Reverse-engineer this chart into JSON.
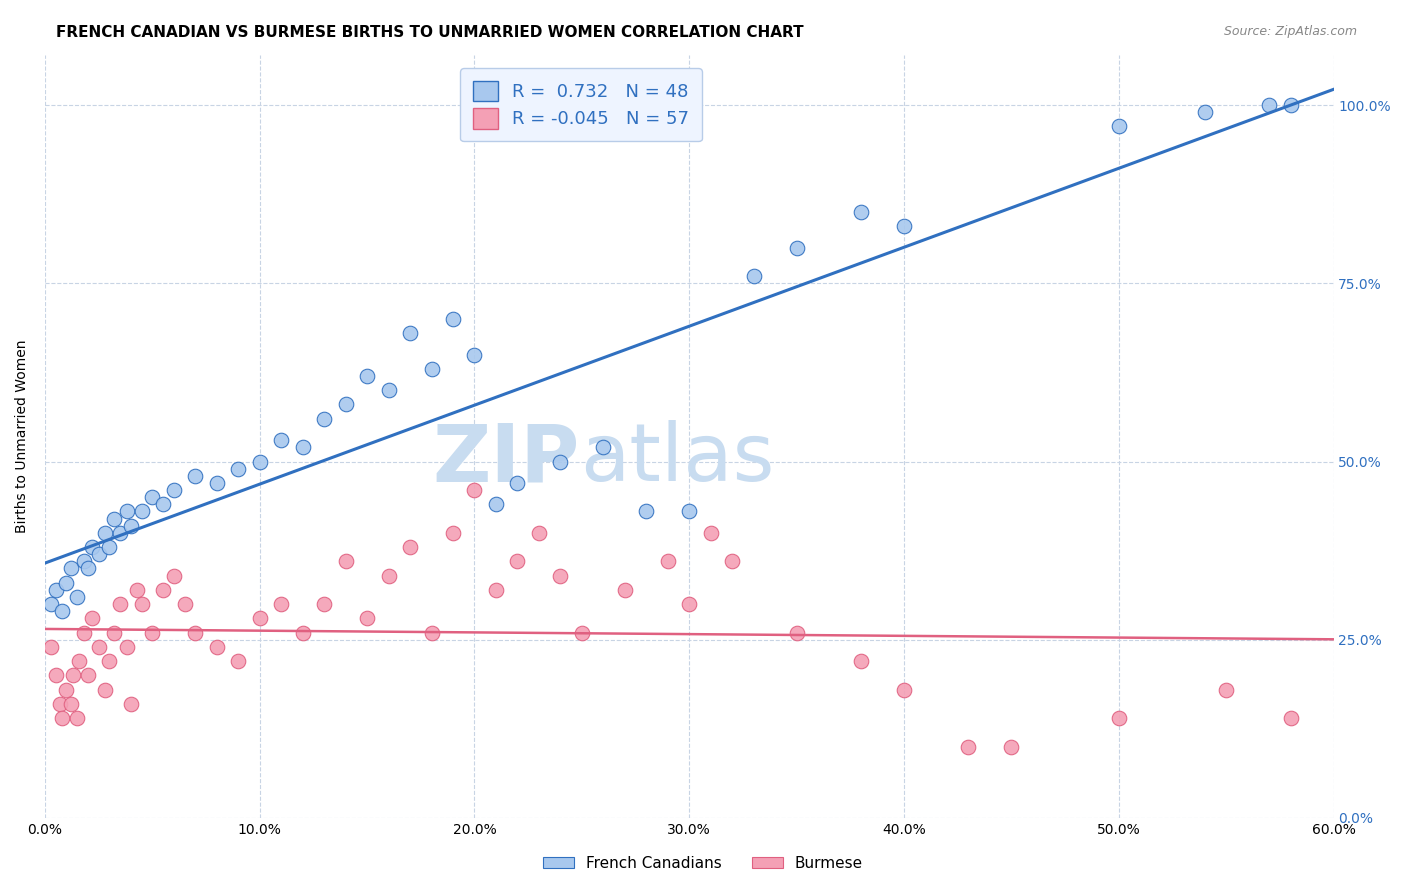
{
  "title": "FRENCH CANADIAN VS BURMESE BIRTHS TO UNMARRIED WOMEN CORRELATION CHART",
  "source": "Source: ZipAtlas.com",
  "ylabel": "Births to Unmarried Women",
  "xlabel_vals": [
    0,
    10,
    20,
    30,
    40,
    50,
    60
  ],
  "ylabel_vals": [
    0,
    25,
    50,
    75,
    100
  ],
  "xlim": [
    0,
    60
  ],
  "ylim": [
    0,
    107
  ],
  "r_french": 0.732,
  "n_french": 48,
  "r_burmese": -0.045,
  "n_burmese": 57,
  "french_color": "#A8C8EE",
  "burmese_color": "#F4A0B5",
  "french_line_color": "#3070C0",
  "burmese_line_color": "#E06080",
  "legend_box_facecolor": "#EEF4FF",
  "legend_border_color": "#B8CCE8",
  "watermark_zip": "ZIP",
  "watermark_atlas": "atlas",
  "watermark_color": "#C8DCF0",
  "grid_color": "#C8D4E4",
  "french_scatter_x": [
    0.3,
    0.5,
    0.8,
    1.0,
    1.2,
    1.5,
    1.8,
    2.0,
    2.2,
    2.5,
    2.8,
    3.0,
    3.2,
    3.5,
    3.8,
    4.0,
    4.5,
    5.0,
    5.5,
    6.0,
    7.0,
    8.0,
    9.0,
    10.0,
    11.0,
    12.0,
    13.0,
    14.0,
    15.0,
    16.0,
    17.0,
    18.0,
    19.0,
    20.0,
    21.0,
    22.0,
    24.0,
    26.0,
    28.0,
    30.0,
    33.0,
    35.0,
    38.0,
    40.0,
    50.0,
    54.0,
    57.0,
    58.0
  ],
  "french_scatter_y": [
    30,
    32,
    29,
    33,
    35,
    31,
    36,
    35,
    38,
    37,
    40,
    38,
    42,
    40,
    43,
    41,
    43,
    45,
    44,
    46,
    48,
    47,
    49,
    50,
    53,
    52,
    56,
    58,
    62,
    60,
    68,
    63,
    70,
    65,
    44,
    47,
    50,
    52,
    43,
    43,
    76,
    80,
    85,
    83,
    97,
    99,
    100,
    100
  ],
  "burmese_scatter_x": [
    0.3,
    0.5,
    0.7,
    0.8,
    1.0,
    1.2,
    1.3,
    1.5,
    1.6,
    1.8,
    2.0,
    2.2,
    2.5,
    2.8,
    3.0,
    3.2,
    3.5,
    3.8,
    4.0,
    4.3,
    4.5,
    5.0,
    5.5,
    6.0,
    6.5,
    7.0,
    8.0,
    9.0,
    10.0,
    11.0,
    12.0,
    13.0,
    14.0,
    15.0,
    16.0,
    17.0,
    18.0,
    19.0,
    20.0,
    21.0,
    22.0,
    23.0,
    24.0,
    25.0,
    27.0,
    29.0,
    30.0,
    31.0,
    32.0,
    35.0,
    38.0,
    40.0,
    43.0,
    45.0,
    50.0,
    55.0,
    58.0
  ],
  "burmese_scatter_y": [
    24,
    20,
    16,
    14,
    18,
    16,
    20,
    14,
    22,
    26,
    20,
    28,
    24,
    18,
    22,
    26,
    30,
    24,
    16,
    32,
    30,
    26,
    32,
    34,
    30,
    26,
    24,
    22,
    28,
    30,
    26,
    30,
    36,
    28,
    34,
    38,
    26,
    40,
    46,
    32,
    36,
    40,
    34,
    26,
    32,
    36,
    30,
    40,
    36,
    26,
    22,
    18,
    10,
    10,
    14,
    18,
    14
  ],
  "title_fontsize": 11,
  "source_fontsize": 9,
  "axis_label_fontsize": 10,
  "tick_fontsize": 10,
  "legend_fontsize": 13
}
